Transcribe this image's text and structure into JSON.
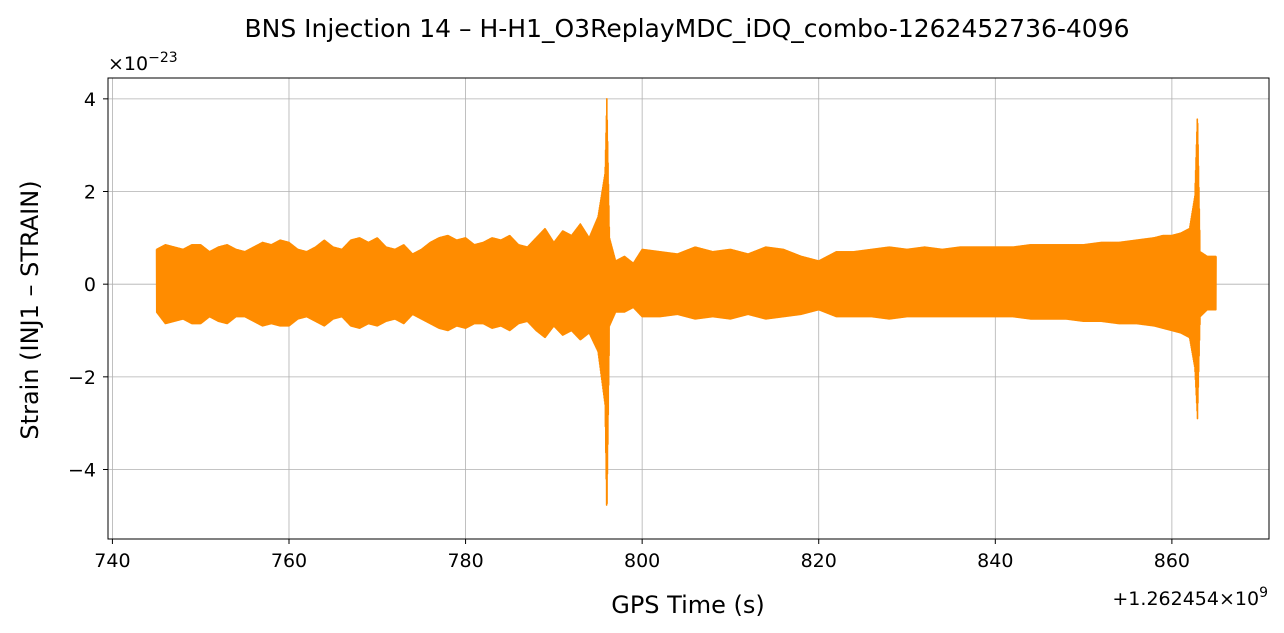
{
  "chart_data": {
    "type": "line",
    "title": "BNS Injection 14 – H-H1_O3ReplayMDC_iDQ_combo-1262452736-4096",
    "xlabel": "GPS Time (s)",
    "ylabel": "Strain (INJ1 – STRAIN)",
    "y_scale_label": "×10",
    "y_scale_exponent": "−23",
    "x_offset_label": "+1.262454×10",
    "x_offset_exponent": "9",
    "xlim": [
      739.5,
      871
    ],
    "ylim": [
      -5.5,
      4.45
    ],
    "xticks": [
      740,
      760,
      780,
      800,
      820,
      840,
      860
    ],
    "xtick_labels": [
      "740",
      "760",
      "780",
      "800",
      "820",
      "840",
      "860"
    ],
    "yticks": [
      -4,
      -2,
      0,
      2,
      4
    ],
    "ytick_labels": [
      "−4",
      "−2",
      "0",
      "2",
      "4"
    ],
    "grid": true,
    "color": "#ff8c00",
    "envelope": {
      "x": [
        745,
        746,
        747,
        748,
        749,
        750,
        751,
        752,
        753,
        754,
        755,
        756,
        757,
        758,
        759,
        760,
        761,
        762,
        763,
        764,
        765,
        766,
        767,
        768,
        769,
        770,
        771,
        772,
        773,
        774,
        775,
        776,
        777,
        778,
        779,
        780,
        781,
        782,
        783,
        784,
        785,
        786,
        787,
        788,
        789,
        790,
        791,
        792,
        793,
        794,
        795,
        795.8,
        796,
        796.3,
        797,
        798,
        799,
        800,
        802,
        804,
        806,
        808,
        810,
        812,
        814,
        816,
        818,
        820,
        822,
        824,
        826,
        828,
        830,
        832,
        834,
        836,
        838,
        840,
        842,
        844,
        846,
        848,
        850,
        852,
        854,
        856,
        858,
        859,
        860,
        861,
        862,
        862.6,
        862.9,
        863.2,
        864,
        865
      ],
      "upper": [
        0.75,
        0.85,
        0.8,
        0.75,
        0.85,
        0.85,
        0.7,
        0.8,
        0.85,
        0.75,
        0.7,
        0.8,
        0.9,
        0.85,
        0.95,
        0.9,
        0.75,
        0.7,
        0.8,
        0.95,
        0.8,
        0.75,
        0.95,
        1.0,
        0.9,
        1.0,
        0.8,
        0.75,
        0.85,
        0.65,
        0.75,
        0.9,
        1.0,
        1.05,
        0.95,
        1.0,
        0.85,
        0.9,
        1.0,
        0.95,
        1.05,
        0.85,
        0.8,
        1.0,
        1.2,
        0.9,
        1.15,
        1.05,
        1.3,
        1.0,
        1.45,
        2.4,
        4.0,
        1.0,
        0.5,
        0.6,
        0.45,
        0.75,
        0.7,
        0.65,
        0.8,
        0.7,
        0.75,
        0.65,
        0.8,
        0.75,
        0.6,
        0.5,
        0.7,
        0.7,
        0.75,
        0.8,
        0.75,
        0.8,
        0.75,
        0.8,
        0.8,
        0.8,
        0.8,
        0.85,
        0.85,
        0.85,
        0.85,
        0.9,
        0.9,
        0.95,
        1.0,
        1.05,
        1.05,
        1.1,
        1.2,
        1.9,
        3.7,
        0.7,
        0.6,
        0.6
      ],
      "lower": [
        -0.6,
        -0.85,
        -0.8,
        -0.75,
        -0.85,
        -0.85,
        -0.7,
        -0.8,
        -0.85,
        -0.7,
        -0.7,
        -0.8,
        -0.9,
        -0.85,
        -0.9,
        -0.9,
        -0.75,
        -0.7,
        -0.8,
        -0.9,
        -0.75,
        -0.7,
        -0.9,
        -0.95,
        -0.85,
        -0.9,
        -0.8,
        -0.75,
        -0.85,
        -0.65,
        -0.75,
        -0.85,
        -0.95,
        -1.0,
        -0.9,
        -0.95,
        -0.85,
        -0.85,
        -0.95,
        -0.9,
        -1.0,
        -0.85,
        -0.8,
        -1.0,
        -1.15,
        -0.9,
        -1.1,
        -1.0,
        -1.2,
        -1.05,
        -1.45,
        -2.6,
        -5.05,
        -0.9,
        -0.6,
        -0.6,
        -0.5,
        -0.7,
        -0.7,
        -0.65,
        -0.75,
        -0.7,
        -0.75,
        -0.65,
        -0.75,
        -0.7,
        -0.65,
        -0.55,
        -0.7,
        -0.7,
        -0.7,
        -0.75,
        -0.7,
        -0.7,
        -0.7,
        -0.7,
        -0.7,
        -0.7,
        -0.7,
        -0.75,
        -0.75,
        -0.75,
        -0.8,
        -0.8,
        -0.85,
        -0.85,
        -0.9,
        -0.95,
        -1.0,
        -1.05,
        -1.15,
        -1.8,
        -2.9,
        -0.7,
        -0.55,
        -0.55
      ]
    }
  }
}
